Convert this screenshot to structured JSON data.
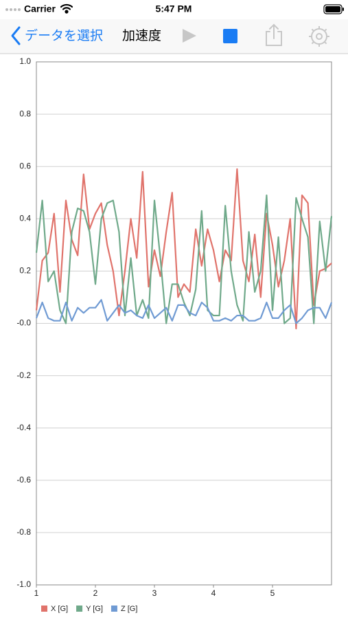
{
  "status_bar": {
    "carrier": "Carrier",
    "time": "5:47 PM"
  },
  "nav_bar": {
    "back": "データを選択",
    "title": "加速度"
  },
  "chart_data": {
    "type": "line",
    "x": [
      1,
      1.1,
      1.2,
      1.3,
      1.4,
      1.5,
      1.6,
      1.7,
      1.8,
      1.9,
      2,
      2.1,
      2.2,
      2.3,
      2.4,
      2.5,
      2.6,
      2.7,
      2.8,
      2.9,
      3,
      3.1,
      3.2,
      3.3,
      3.4,
      3.5,
      3.6,
      3.7,
      3.8,
      3.9,
      4,
      4.1,
      4.2,
      4.3,
      4.4,
      4.5,
      4.6,
      4.7,
      4.8,
      4.9,
      5,
      5.1,
      5.2,
      5.3,
      5.4,
      5.5,
      5.6,
      5.7,
      5.8,
      5.9,
      6
    ],
    "series": [
      {
        "name": "X [G]",
        "color": "#e0736b",
        "values": [
          0.05,
          0.24,
          0.27,
          0.42,
          0.12,
          0.47,
          0.32,
          0.26,
          0.57,
          0.36,
          0.42,
          0.46,
          0.3,
          0.2,
          0.03,
          0.2,
          0.4,
          0.25,
          0.58,
          0.14,
          0.28,
          0.18,
          0.35,
          0.5,
          0.1,
          0.15,
          0.12,
          0.36,
          0.22,
          0.36,
          0.28,
          0.16,
          0.28,
          0.24,
          0.59,
          0.24,
          0.16,
          0.34,
          0.1,
          0.42,
          0.3,
          0.14,
          0.24,
          0.4,
          -0.02,
          0.49,
          0.46,
          0.07,
          0.2,
          0.21,
          0.23
        ]
      },
      {
        "name": "Y [G]",
        "color": "#6fa98a",
        "values": [
          0.27,
          0.47,
          0.16,
          0.2,
          0.05,
          0.0,
          0.35,
          0.44,
          0.43,
          0.35,
          0.15,
          0.4,
          0.46,
          0.47,
          0.35,
          0.03,
          0.25,
          0.03,
          0.09,
          0.02,
          0.47,
          0.25,
          0.0,
          0.15,
          0.15,
          0.08,
          0.03,
          0.13,
          0.43,
          0.05,
          0.03,
          0.03,
          0.45,
          0.2,
          0.07,
          0.01,
          0.35,
          0.12,
          0.2,
          0.49,
          0.05,
          0.33,
          0.0,
          0.02,
          0.48,
          0.4,
          0.33,
          0.0,
          0.39,
          0.2,
          0.41
        ]
      },
      {
        "name": "Z [G]",
        "color": "#6f9ad3",
        "values": [
          0.02,
          0.08,
          0.02,
          0.01,
          0.01,
          0.08,
          0.01,
          0.06,
          0.04,
          0.06,
          0.06,
          0.09,
          0.01,
          0.04,
          0.07,
          0.04,
          0.05,
          0.03,
          0.02,
          0.07,
          0.02,
          0.04,
          0.06,
          0.01,
          0.07,
          0.07,
          0.04,
          0.03,
          0.08,
          0.06,
          0.01,
          0.01,
          0.02,
          0.01,
          0.03,
          0.03,
          0.01,
          0.01,
          0.02,
          0.08,
          0.02,
          0.02,
          0.05,
          0.07,
          0.0,
          0.02,
          0.05,
          0.06,
          0.06,
          0.02,
          0.08
        ]
      }
    ],
    "xlim": [
      1,
      6
    ],
    "xticks": [
      1,
      2,
      3,
      4,
      5
    ],
    "ylim": [
      -1,
      1
    ],
    "yticks": [
      {
        "value": -1,
        "label": "-1.0"
      },
      {
        "value": -0.8,
        "label": "-0.8"
      },
      {
        "value": -0.6,
        "label": "-0.6"
      },
      {
        "value": -0.4,
        "label": "-0.4"
      },
      {
        "value": -0.2,
        "label": "-0.2"
      },
      {
        "value": 0,
        "label": "-0.0"
      },
      {
        "value": 0.2,
        "label": "0.2"
      },
      {
        "value": 0.4,
        "label": "0.4"
      },
      {
        "value": 0.6,
        "label": "0.6"
      },
      {
        "value": 0.8,
        "label": "0.8"
      },
      {
        "value": 1,
        "label": "1.0"
      }
    ],
    "grid": true,
    "legend": "bottom-left"
  }
}
